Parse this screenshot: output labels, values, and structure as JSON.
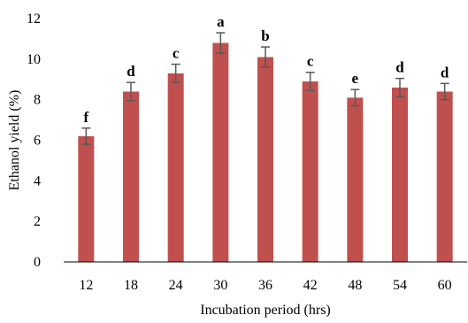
{
  "chart_data": {
    "type": "bar",
    "title": "",
    "xlabel": "Incubation period (hrs)",
    "ylabel": "Ethanol yield (%)",
    "categories": [
      "12",
      "18",
      "24",
      "30",
      "36",
      "42",
      "48",
      "54",
      "60"
    ],
    "values": [
      6.2,
      8.4,
      9.3,
      10.8,
      10.1,
      8.9,
      8.1,
      8.6,
      8.4
    ],
    "errors": [
      0.4,
      0.45,
      0.45,
      0.5,
      0.5,
      0.45,
      0.4,
      0.45,
      0.4
    ],
    "significance_labels": [
      "f",
      "d",
      "c",
      "a",
      "b",
      "c",
      "e",
      "d",
      "d"
    ],
    "ylim": [
      0,
      12
    ],
    "yticks": [
      "0",
      "2",
      "4",
      "6",
      "8",
      "10",
      "12"
    ],
    "grid": false,
    "legend": "none",
    "colors": {
      "bar": "#c0504d",
      "error_bar": "#595959",
      "axis": "#000000"
    }
  }
}
